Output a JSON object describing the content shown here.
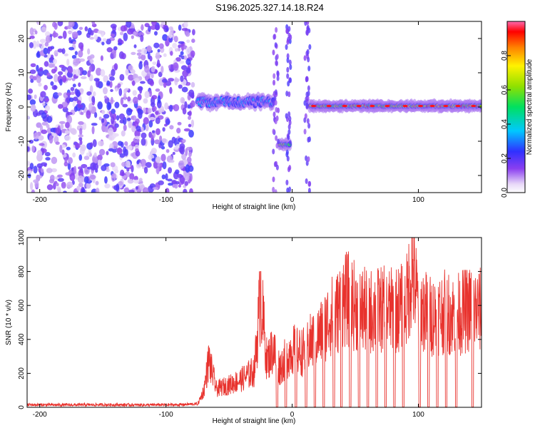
{
  "title": "S196.2025.327.14.18.R24",
  "colors": {
    "snr_line": "#e8332e",
    "axis": "#000000",
    "colormap": [
      "#ffffff",
      "#dcc8f5",
      "#8a3ff0",
      "#3c3cff",
      "#00c8ff",
      "#00e08c",
      "#7ee000",
      "#fff200",
      "#ff8000",
      "#ff0000",
      "#ff66b3"
    ]
  },
  "chart_data": [
    {
      "type": "heatmap",
      "xlabel": "Height of straight line (km)",
      "ylabel": "Frequency (Hz)",
      "xlim": [
        -210,
        150
      ],
      "ylim": [
        -25,
        25
      ],
      "xticks": [
        -200,
        -100,
        0,
        100
      ],
      "yticks": [
        -20,
        -10,
        0,
        10,
        20
      ],
      "colorbar": {
        "label": "Normalized spectral amplitude",
        "range": [
          0.0,
          1.0
        ],
        "ticks": [
          0.0,
          0.2,
          0.4,
          0.6,
          0.8
        ]
      },
      "features": [
        {
          "name": "broadband noise",
          "x_range": [
            -210,
            -78
          ],
          "freq_range": [
            -25,
            25
          ],
          "amplitude": 0.2
        },
        {
          "name": "noisy signal band",
          "x_range": [
            -75,
            -15
          ],
          "center_hz": 1.5,
          "amplitude": 0.35
        },
        {
          "name": "negative frequency segment",
          "x_range": [
            -10,
            -2
          ],
          "center_hz": -11,
          "amplitude": 0.75
        },
        {
          "name": "carrier",
          "x_range": [
            14,
            150
          ],
          "center_hz": 0.3,
          "amplitude": 0.9
        }
      ]
    },
    {
      "type": "line",
      "xlabel": "Height of straight line (km)",
      "ylabel": "SNR (10 * v/v)",
      "xlim": [
        -210,
        150
      ],
      "ylim": [
        0,
        1000
      ],
      "xticks": [
        -200,
        -100,
        0,
        100
      ],
      "yticks": [
        0,
        200,
        400,
        600,
        800,
        1000
      ],
      "series": [
        {
          "name": "SNR",
          "x": [
            -210,
            -180,
            -150,
            -120,
            -90,
            -75,
            -70,
            -66,
            -60,
            -50,
            -40,
            -30,
            -25,
            -20,
            -15,
            -10,
            -5,
            0,
            5,
            10,
            15,
            20,
            25,
            30,
            35,
            40,
            45,
            50,
            60,
            70,
            80,
            90,
            95,
            100,
            110,
            120,
            130,
            140,
            150
          ],
          "y": [
            15,
            14,
            15,
            14,
            15,
            20,
            120,
            340,
            130,
            160,
            200,
            260,
            800,
            330,
            420,
            280,
            350,
            420,
            390,
            400,
            470,
            500,
            560,
            650,
            660,
            760,
            770,
            720,
            680,
            700,
            690,
            720,
            1000,
            720,
            650,
            680,
            660,
            700,
            690
          ]
        }
      ]
    }
  ]
}
